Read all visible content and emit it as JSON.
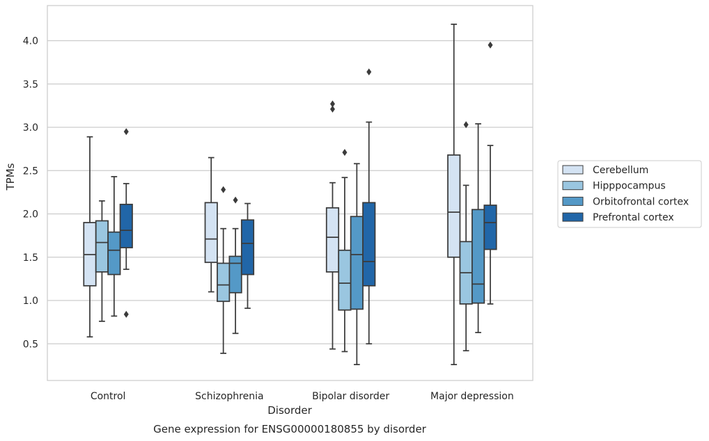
{
  "chart_data": {
    "type": "box",
    "title": "",
    "caption": "Gene expression for ENSG00000180855 by disorder",
    "xlabel": "Disorder",
    "ylabel": "TPMs",
    "ylim": [
      0.1,
      4.4
    ],
    "yticks": [
      0.5,
      1.0,
      1.5,
      2.0,
      2.5,
      3.0,
      3.5,
      4.0
    ],
    "ytick_labels": [
      "0.5",
      "1.0",
      "1.5",
      "2.0",
      "2.5",
      "3.0",
      "3.5",
      "4.0"
    ],
    "grid": "horizontal",
    "legend_position": "right",
    "categories": [
      "Control",
      "Schizophrenia",
      "Bipolar disorder",
      "Major depression"
    ],
    "series": [
      {
        "name": "Cerebellum",
        "color": "#d4e3f3",
        "boxes": [
          {
            "whisker_low": 0.58,
            "q1": 1.17,
            "median": 1.53,
            "q3": 1.9,
            "whisker_high": 2.89,
            "outliers": []
          },
          {
            "whisker_low": 1.1,
            "q1": 1.44,
            "median": 1.71,
            "q3": 2.13,
            "whisker_high": 2.65,
            "outliers": []
          },
          {
            "whisker_low": 0.44,
            "q1": 1.33,
            "median": 1.73,
            "q3": 2.07,
            "whisker_high": 2.36,
            "outliers": [
              3.21,
              3.27
            ]
          },
          {
            "whisker_low": 0.26,
            "q1": 1.5,
            "median": 2.02,
            "q3": 2.68,
            "whisker_high": 4.19,
            "outliers": []
          }
        ]
      },
      {
        "name": "Hipppocampus",
        "color": "#9ac6e0",
        "boxes": [
          {
            "whisker_low": 0.76,
            "q1": 1.33,
            "median": 1.67,
            "q3": 1.92,
            "whisker_high": 2.15,
            "outliers": []
          },
          {
            "whisker_low": 0.39,
            "q1": 0.99,
            "median": 1.18,
            "q3": 1.43,
            "whisker_high": 1.83,
            "outliers": [
              2.28
            ]
          },
          {
            "whisker_low": 0.41,
            "q1": 0.89,
            "median": 1.2,
            "q3": 1.58,
            "whisker_high": 2.42,
            "outliers": [
              2.71
            ]
          },
          {
            "whisker_low": 0.42,
            "q1": 0.96,
            "median": 1.32,
            "q3": 1.68,
            "whisker_high": 2.33,
            "outliers": [
              3.03
            ]
          }
        ]
      },
      {
        "name": "Orbitofrontal cortex",
        "color": "#5499c7",
        "boxes": [
          {
            "whisker_low": 0.82,
            "q1": 1.3,
            "median": 1.58,
            "q3": 1.79,
            "whisker_high": 2.43,
            "outliers": []
          },
          {
            "whisker_low": 0.62,
            "q1": 1.09,
            "median": 1.43,
            "q3": 1.51,
            "whisker_high": 1.83,
            "outliers": [
              2.16
            ]
          },
          {
            "whisker_low": 0.26,
            "q1": 0.9,
            "median": 1.53,
            "q3": 1.97,
            "whisker_high": 2.58,
            "outliers": []
          },
          {
            "whisker_low": 0.63,
            "q1": 0.97,
            "median": 1.19,
            "q3": 2.05,
            "whisker_high": 3.04,
            "outliers": []
          }
        ]
      },
      {
        "name": "Prefrontal cortex",
        "color": "#2166a8",
        "boxes": [
          {
            "whisker_low": 1.36,
            "q1": 1.61,
            "median": 1.81,
            "q3": 2.11,
            "whisker_high": 2.35,
            "outliers": [
              0.84,
              2.95
            ]
          },
          {
            "whisker_low": 0.91,
            "q1": 1.3,
            "median": 1.66,
            "q3": 1.93,
            "whisker_high": 2.12,
            "outliers": []
          },
          {
            "whisker_low": 0.5,
            "q1": 1.17,
            "median": 1.45,
            "q3": 2.13,
            "whisker_high": 3.06,
            "outliers": [
              3.64
            ]
          },
          {
            "whisker_low": 0.96,
            "q1": 1.59,
            "median": 1.9,
            "q3": 2.1,
            "whisker_high": 2.79,
            "outliers": [
              3.95
            ]
          }
        ]
      }
    ]
  }
}
